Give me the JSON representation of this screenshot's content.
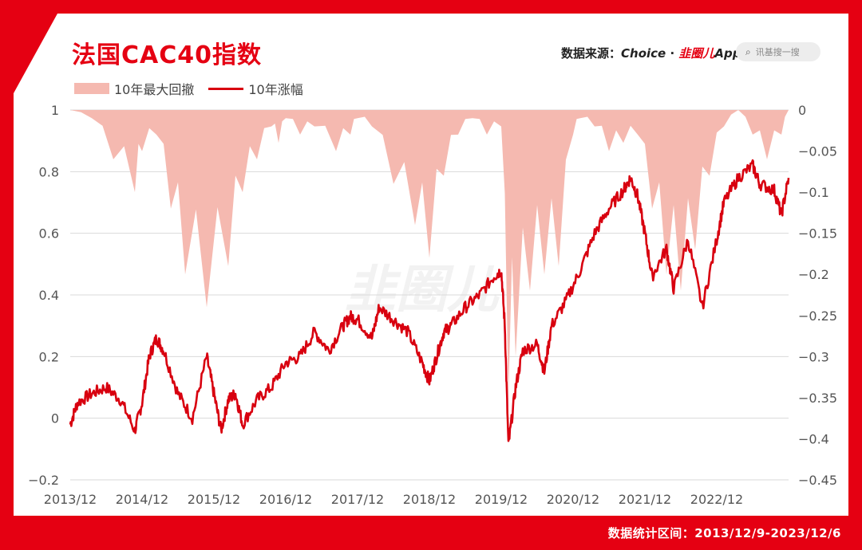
{
  "header": {
    "title": "法国CAC40指数",
    "source_prefix": "数据来源：",
    "source_choice": "Choice",
    "source_dot": " · ",
    "source_brand": "韭圈儿",
    "source_app": "App",
    "search_placeholder": "讯基搜一搜"
  },
  "footer": {
    "range_text": "数据统计区间：2013/12/9-2023/12/6"
  },
  "watermark": "韭圈儿",
  "colors": {
    "brand_red": "#E50012",
    "line": "#D8000F",
    "drawdown_fill": "#F5B9B0",
    "grid": "#D9D9D9"
  },
  "chart_data": {
    "type": "line",
    "x_ticks": [
      "2013/12",
      "2014/12",
      "2015/12",
      "2016/12",
      "2017/12",
      "2018/12",
      "2019/12",
      "2020/12",
      "2021/12",
      "2022/12"
    ],
    "y_left_ticks": [
      "1",
      "0.8",
      "0.6",
      "0.4",
      "0.2",
      "0",
      "−0.2"
    ],
    "y_right_ticks": [
      "0",
      "−0.05",
      "−0.1",
      "−0.15",
      "−0.2",
      "−0.25",
      "−0.3",
      "−0.35",
      "−0.4",
      "−0.45"
    ],
    "ylim_left": [
      -0.2,
      1
    ],
    "ylim_right": [
      -0.45,
      0
    ],
    "grid": true,
    "legend_position": "top-left",
    "series": [
      {
        "name": "10年最大回撤",
        "axis": "right",
        "kind": "area",
        "x": [
          0,
          0.3,
          0.6,
          0.9,
          1.0,
          1.2,
          1.4,
          1.6,
          1.9,
          2.2,
          2.4,
          2.6,
          2.8,
          2.9,
          3.0,
          3.2,
          3.4,
          3.7,
          3.9,
          4.0,
          4.2,
          4.5,
          4.8,
          5.0,
          5.2,
          5.4,
          5.6,
          5.8,
          6.0,
          6.1,
          6.2,
          6.4,
          6.6,
          6.8,
          7.0,
          7.1,
          7.3,
          7.5,
          7.7,
          7.9,
          8.1,
          8.3,
          8.5,
          8.7,
          8.9,
          9.1,
          9.3,
          9.5,
          9.7,
          9.9,
          10.0
        ],
        "y": [
          0,
          -0.01,
          -0.06,
          -0.1,
          -0.05,
          -0.03,
          -0.12,
          -0.2,
          -0.24,
          -0.19,
          -0.1,
          -0.06,
          -0.02,
          -0.04,
          -0.01,
          -0.03,
          -0.02,
          -0.05,
          -0.03,
          -0.01,
          -0.02,
          -0.09,
          -0.14,
          -0.18,
          -0.08,
          -0.03,
          -0.01,
          -0.03,
          -0.02,
          -0.35,
          -0.3,
          -0.22,
          -0.2,
          -0.19,
          -0.03,
          -0.01,
          -0.02,
          -0.05,
          -0.04,
          -0.03,
          -0.12,
          -0.2,
          -0.22,
          -0.17,
          -0.08,
          -0.02,
          0,
          -0.03,
          -0.06,
          -0.03,
          0
        ]
      },
      {
        "name": "10年涨幅",
        "axis": "left",
        "kind": "line",
        "x": [
          0,
          0.1,
          0.3,
          0.5,
          0.7,
          0.9,
          1.0,
          1.1,
          1.2,
          1.3,
          1.5,
          1.7,
          1.9,
          2.0,
          2.1,
          2.2,
          2.3,
          2.4,
          2.6,
          2.8,
          3.0,
          3.2,
          3.4,
          3.6,
          3.8,
          3.9,
          4.0,
          4.2,
          4.3,
          4.5,
          4.7,
          4.9,
          5.0,
          5.1,
          5.2,
          5.3,
          5.5,
          5.7,
          5.9,
          6.0,
          6.05,
          6.1,
          6.2,
          6.3,
          6.5,
          6.6,
          6.7,
          6.9,
          7.1,
          7.3,
          7.5,
          7.7,
          7.8,
          7.9,
          8.0,
          8.1,
          8.3,
          8.4,
          8.6,
          8.8,
          9.0,
          9.1,
          9.3,
          9.5,
          9.6,
          9.8,
          9.9,
          10.0
        ],
        "y": [
          -0.02,
          0.05,
          0.08,
          0.1,
          0.06,
          -0.04,
          0.05,
          0.2,
          0.26,
          0.22,
          0.08,
          0.0,
          0.2,
          0.08,
          -0.04,
          0.06,
          0.08,
          -0.02,
          0.06,
          0.1,
          0.18,
          0.2,
          0.28,
          0.22,
          0.3,
          0.33,
          0.32,
          0.26,
          0.36,
          0.32,
          0.28,
          0.18,
          0.12,
          0.2,
          0.28,
          0.3,
          0.36,
          0.4,
          0.46,
          0.48,
          0.3,
          -0.09,
          0.1,
          0.22,
          0.24,
          0.15,
          0.3,
          0.38,
          0.48,
          0.6,
          0.68,
          0.74,
          0.78,
          0.72,
          0.6,
          0.46,
          0.55,
          0.42,
          0.58,
          0.36,
          0.58,
          0.7,
          0.78,
          0.82,
          0.76,
          0.74,
          0.66,
          0.78
        ]
      }
    ]
  }
}
